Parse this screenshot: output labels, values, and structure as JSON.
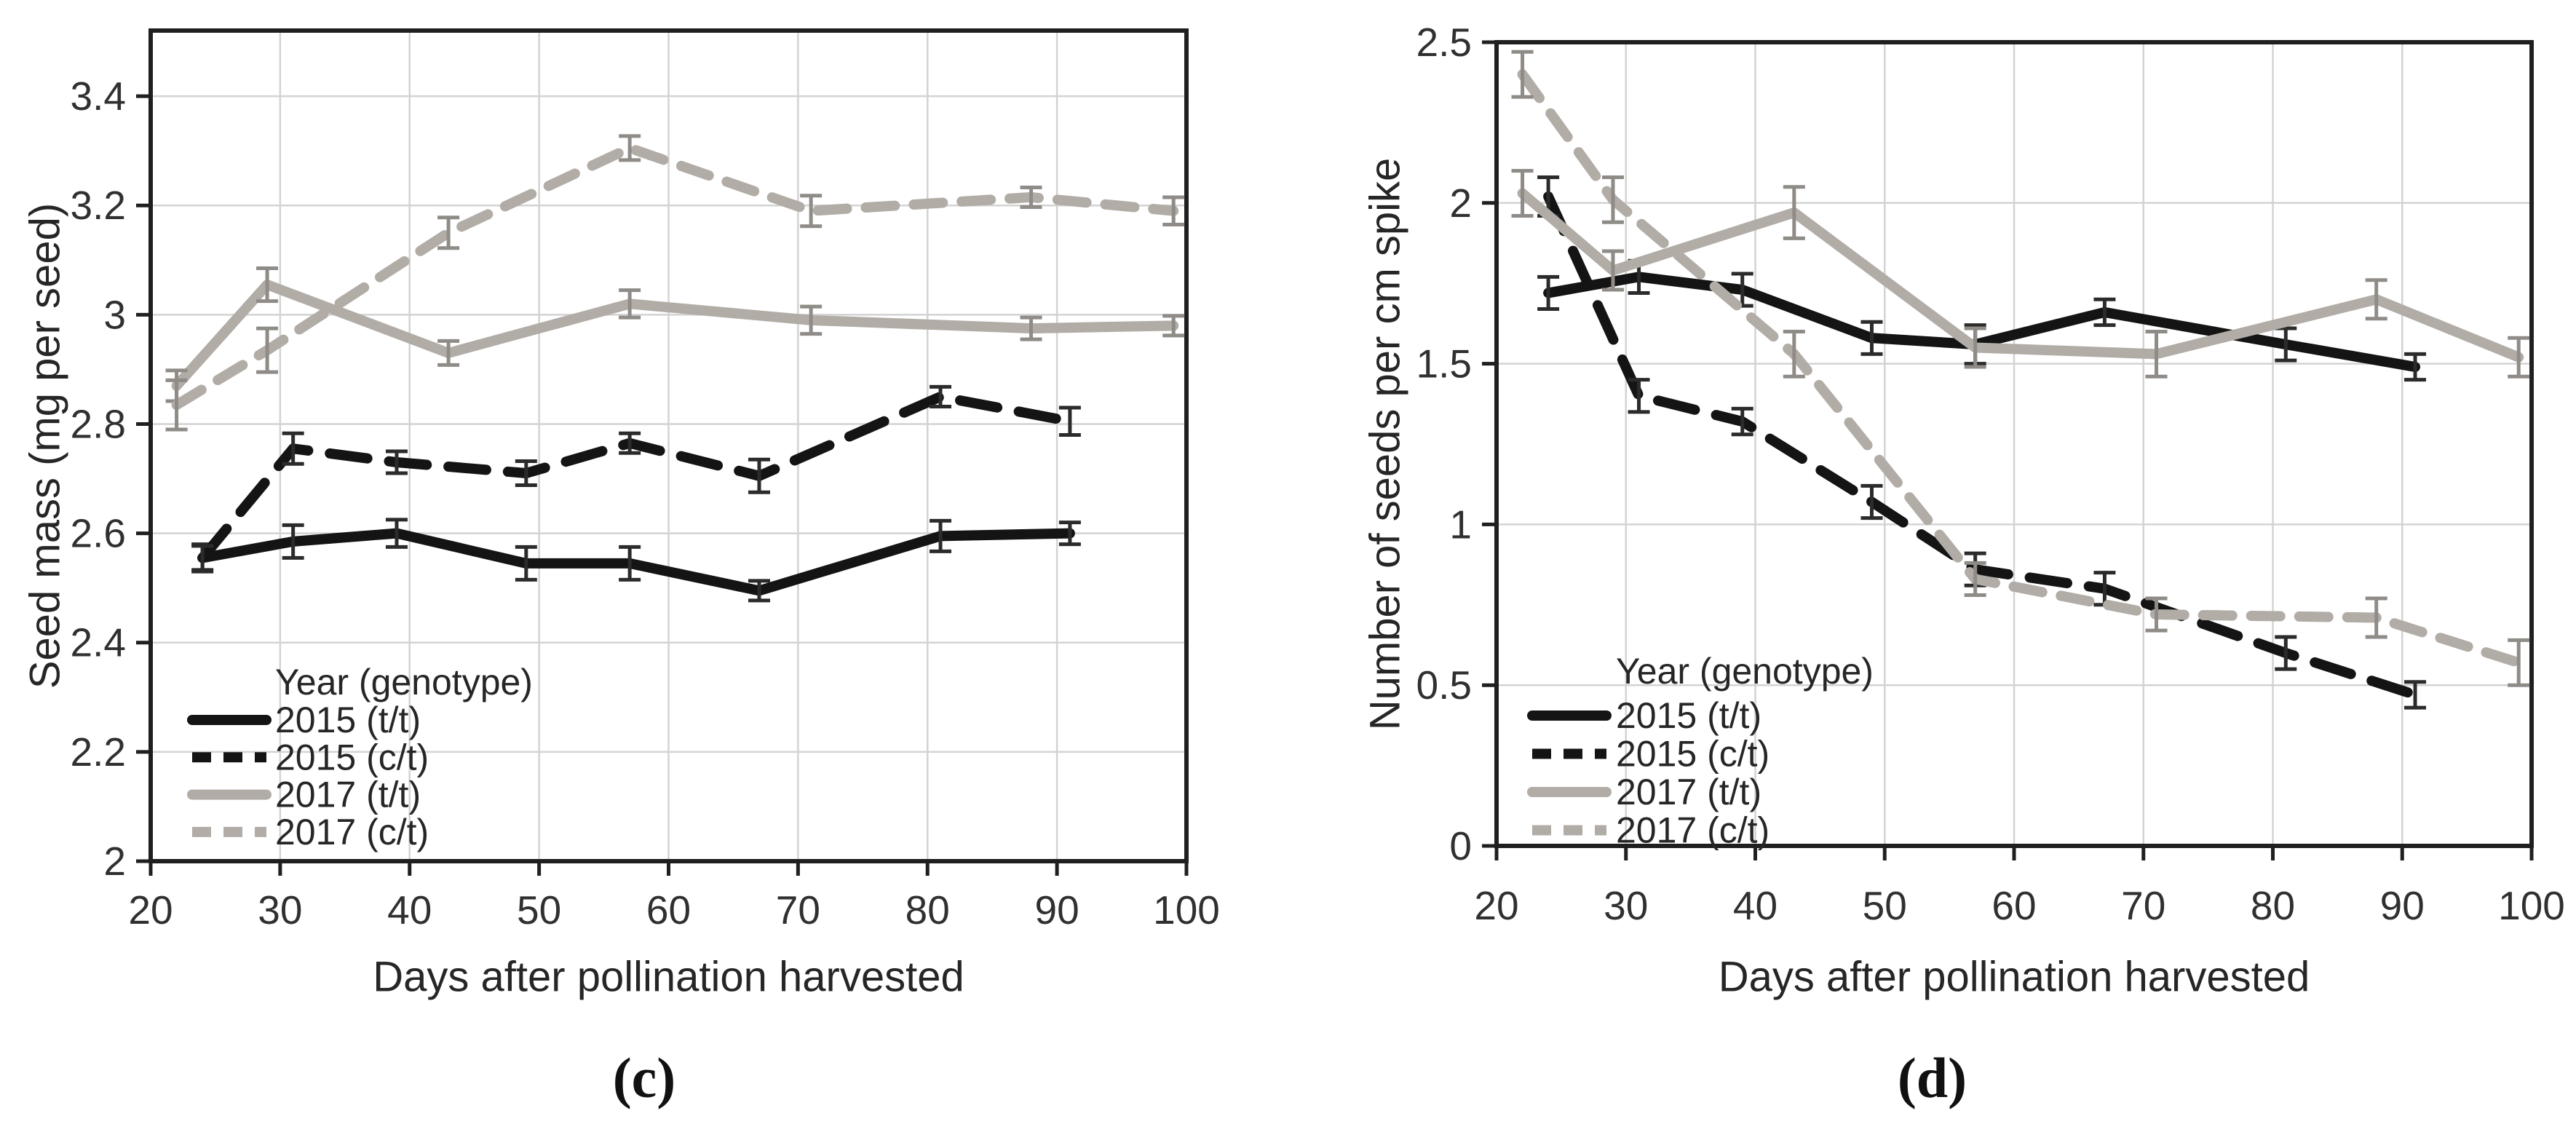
{
  "page": {
    "background": "#ffffff"
  },
  "captions": {
    "c": "(c)",
    "d": "(d)"
  },
  "colors": {
    "black_series": "#141414",
    "gray_series": "#b1aca6",
    "error_bar_black": "#2b2b2b",
    "error_bar_gray": "#8f8b87",
    "gridline": "#d3d3d3",
    "axis": "#1f1f1f",
    "text": "#262626"
  },
  "chart_data": [
    {
      "id": "c",
      "type": "line",
      "panel_label": "(c)",
      "title": "",
      "xlabel": "Days after pollination harvested",
      "ylabel": "Seed mass (mg per seed)",
      "xlim": [
        20,
        100
      ],
      "ylim": [
        2,
        3.52
      ],
      "xticks": [
        20,
        30,
        40,
        50,
        60,
        70,
        80,
        90,
        100
      ],
      "yticks": [
        2,
        2.2,
        2.4,
        2.6,
        2.8,
        3,
        3.2,
        3.4
      ],
      "ytick_labels": [
        "2",
        "2.2",
        "2.4",
        "2.6",
        "2.8",
        "3",
        "3.2",
        "3.4"
      ],
      "grid": true,
      "legend": {
        "title": "Year (genotype)",
        "position": "lower-left-inside"
      },
      "series": [
        {
          "name": "2015 (t/t)",
          "year": "2015",
          "genotype": "t/t",
          "color": "black",
          "dash": "solid",
          "x": [
            24,
            31,
            39,
            49,
            57,
            67,
            81,
            91
          ],
          "y": [
            2.555,
            2.585,
            2.6,
            2.545,
            2.545,
            2.495,
            2.595,
            2.6
          ],
          "err": [
            0.025,
            0.03,
            0.025,
            0.03,
            0.03,
            0.018,
            0.028,
            0.02
          ]
        },
        {
          "name": "2015 (c/t)",
          "year": "2015",
          "genotype": "c/t",
          "color": "black",
          "dash": "dashed",
          "x": [
            24,
            31,
            39,
            49,
            57,
            67,
            81,
            91
          ],
          "y": [
            2.555,
            2.755,
            2.73,
            2.71,
            2.765,
            2.705,
            2.85,
            2.805
          ],
          "err": [
            0.022,
            0.028,
            0.02,
            0.022,
            0.018,
            0.03,
            0.018,
            0.025
          ]
        },
        {
          "name": "2017 (t/t)",
          "year": "2017",
          "genotype": "t/t",
          "color": "gray",
          "dash": "solid",
          "x": [
            22,
            29,
            43,
            57,
            71,
            88,
            99
          ],
          "y": [
            2.87,
            3.055,
            2.93,
            3.02,
            2.99,
            2.975,
            2.98
          ],
          "err": [
            0.028,
            0.03,
            0.022,
            0.025,
            0.025,
            0.02,
            0.018
          ]
        },
        {
          "name": "2017 (c/t)",
          "year": "2017",
          "genotype": "c/t",
          "color": "gray",
          "dash": "dashed",
          "x": [
            22,
            29,
            43,
            57,
            71,
            88,
            99
          ],
          "y": [
            2.835,
            2.935,
            3.15,
            3.305,
            3.19,
            3.215,
            3.19
          ],
          "err": [
            0.045,
            0.04,
            0.028,
            0.022,
            0.028,
            0.018,
            0.025
          ]
        }
      ]
    },
    {
      "id": "d",
      "type": "line",
      "panel_label": "(d)",
      "title": "",
      "xlabel": "Days after pollination harvested",
      "ylabel": "Number of seeds per cm spike",
      "xlim": [
        20,
        100
      ],
      "ylim": [
        0,
        2.5
      ],
      "xticks": [
        20,
        30,
        40,
        50,
        60,
        70,
        80,
        90,
        100
      ],
      "yticks": [
        0,
        0.5,
        1,
        1.5,
        2,
        2.5
      ],
      "ytick_labels": [
        "0",
        "0.5",
        "1",
        "1.5",
        "2",
        "2.5"
      ],
      "grid": true,
      "legend": {
        "title": "Year (genotype)",
        "position": "lower-left-inside"
      },
      "series": [
        {
          "name": "2015 (t/t)",
          "year": "2015",
          "genotype": "t/t",
          "color": "black",
          "dash": "solid",
          "x": [
            24,
            31,
            39,
            49,
            57,
            67,
            81,
            91
          ],
          "y": [
            1.72,
            1.77,
            1.73,
            1.58,
            1.56,
            1.66,
            1.56,
            1.49
          ],
          "err": [
            0.05,
            0.05,
            0.05,
            0.05,
            0.06,
            0.04,
            0.05,
            0.04
          ]
        },
        {
          "name": "2015 (c/t)",
          "year": "2015",
          "genotype": "c/t",
          "color": "black",
          "dash": "dashed",
          "x": [
            24,
            31,
            39,
            49,
            57,
            67,
            81,
            91
          ],
          "y": [
            2.02,
            1.4,
            1.32,
            1.07,
            0.86,
            0.8,
            0.6,
            0.47
          ],
          "err": [
            0.06,
            0.05,
            0.04,
            0.05,
            0.05,
            0.05,
            0.05,
            0.04
          ]
        },
        {
          "name": "2017 (t/t)",
          "year": "2017",
          "genotype": "t/t",
          "color": "gray",
          "dash": "solid",
          "x": [
            22,
            29,
            43,
            57,
            71,
            88,
            99
          ],
          "y": [
            2.03,
            1.79,
            1.97,
            1.55,
            1.53,
            1.7,
            1.52
          ],
          "err": [
            0.07,
            0.06,
            0.08,
            0.06,
            0.07,
            0.06,
            0.06
          ]
        },
        {
          "name": "2017 (c/t)",
          "year": "2017",
          "genotype": "c/t",
          "color": "gray",
          "dash": "dashed",
          "x": [
            22,
            29,
            43,
            57,
            71,
            88,
            99
          ],
          "y": [
            2.4,
            2.01,
            1.53,
            0.83,
            0.72,
            0.71,
            0.57
          ],
          "err": [
            0.07,
            0.07,
            0.07,
            0.05,
            0.05,
            0.06,
            0.07
          ]
        }
      ]
    }
  ]
}
